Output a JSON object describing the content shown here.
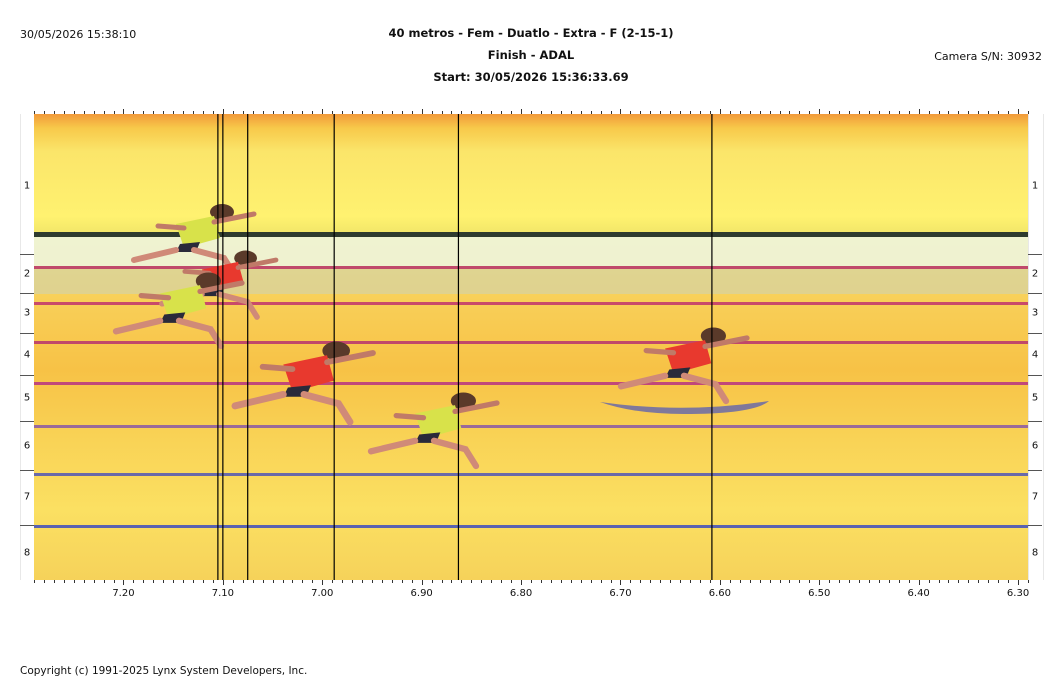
{
  "header": {
    "timestamp": "30/05/2026 15:38:10",
    "title": "40 metros - Fem - Duatlo - Extra - F (2-15-1)",
    "subtitle": "Finish - ADAL",
    "start": "Start: 30/05/2026 15:36:33.69",
    "camera": "Camera S/N: 30932"
  },
  "photo": {
    "lane_numbers": [
      "1",
      "2",
      "3",
      "4",
      "5",
      "6",
      "7",
      "8"
    ],
    "time_axis": {
      "labels": [
        "7.20",
        "7.10",
        "7.00",
        "6.90",
        "6.80",
        "6.70",
        "6.60",
        "6.50",
        "6.40",
        "6.30"
      ],
      "max": 7.29,
      "min": 6.29
    },
    "cursor_times": [
      7.105,
      7.1,
      7.075,
      6.988,
      6.863,
      6.608
    ],
    "colors": {
      "track": "#f7c63a",
      "lane_line": "#c25a7a",
      "cursor": "#000000",
      "athlete_red": "#e8392e",
      "athlete_yellow": "#d8e24a"
    }
  },
  "footer": {
    "copyright": "Copyright (c) 1991-2025 Lynx System Developers, Inc."
  }
}
